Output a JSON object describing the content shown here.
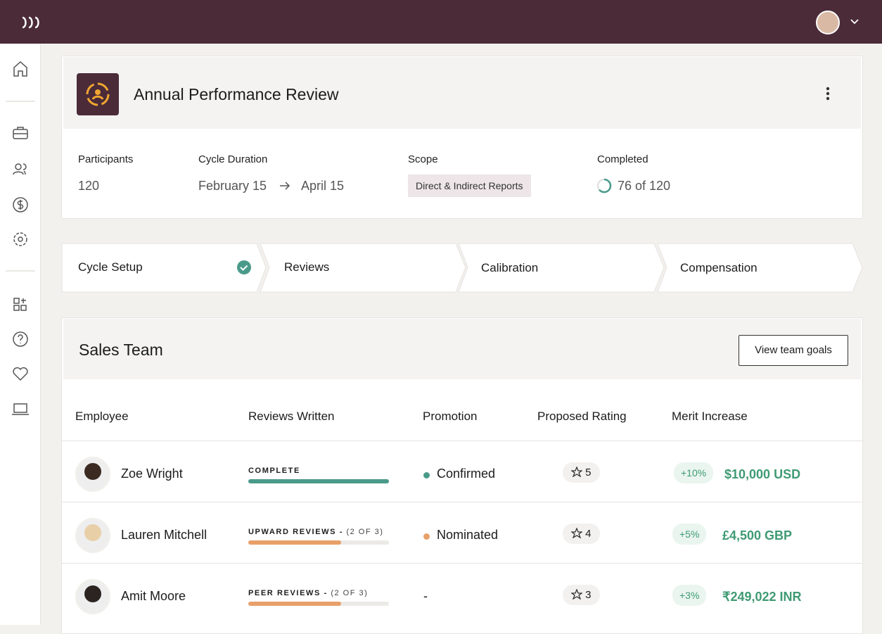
{
  "review": {
    "title": "Annual Performance Review",
    "participants_label": "Participants",
    "participants": "120",
    "duration_label": "Cycle Duration",
    "duration_start": "February 15",
    "duration_end": "April 15",
    "scope_label": "Scope",
    "scope": "Direct & Indirect Reports",
    "completed_label": "Completed",
    "completed": "76 of 120"
  },
  "steps": [
    "Cycle Setup",
    "Reviews",
    "Calibration",
    "Compensation"
  ],
  "team": {
    "title": "Sales Team",
    "button": "View team goals",
    "columns": [
      "Employee",
      "Reviews Written",
      "Promotion",
      "Proposed Rating",
      "Merit Increase"
    ],
    "rows": [
      {
        "name": "Zoe Wright",
        "reviews": "COMPLETE",
        "reviews_count": "",
        "promotion": "Confirmed",
        "rating": "5",
        "merit_pct": "+10%",
        "merit_amount": "$10,000 USD"
      },
      {
        "name": "Lauren Mitchell",
        "reviews": "UPWARD REVIEWS -",
        "reviews_count": "(2 OF 3)",
        "promotion": "Nominated",
        "rating": "4",
        "merit_pct": "+5%",
        "merit_amount": "£4,500 GBP"
      },
      {
        "name": "Amit Moore",
        "reviews": "PEER REVIEWS -",
        "reviews_count": "(2 OF 3)",
        "promotion": "-",
        "rating": "3",
        "merit_pct": "+3%",
        "merit_amount": "₹249,022 INR"
      }
    ]
  }
}
